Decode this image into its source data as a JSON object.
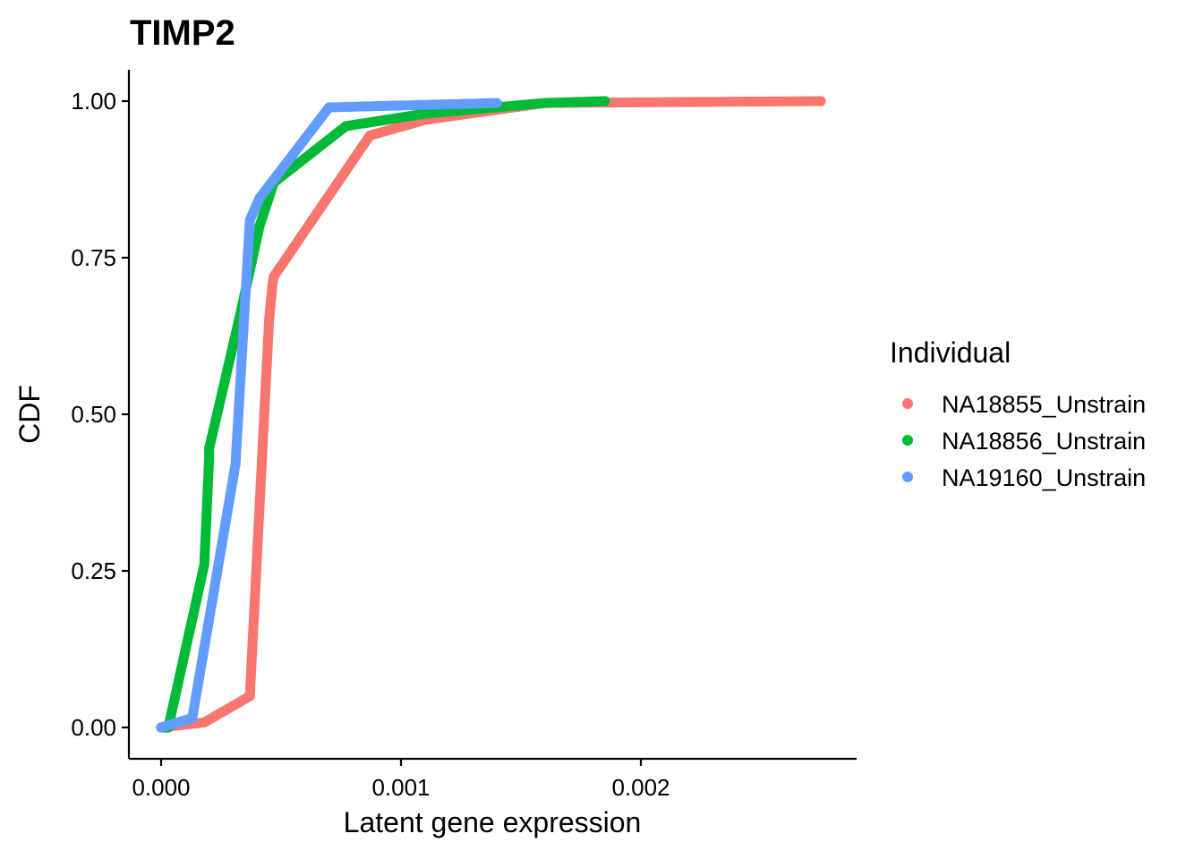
{
  "chart_data": {
    "type": "scatter",
    "title": "TIMP2",
    "xlabel": "Latent gene expression",
    "ylabel": "CDF",
    "xlim": [
      -0.000135,
      0.00291
    ],
    "ylim": [
      -0.047,
      1.05
    ],
    "x_ticks": [
      0.0,
      0.001,
      0.002
    ],
    "x_tick_labels": [
      "0.000",
      "0.001",
      "0.002"
    ],
    "y_ticks": [
      0.0,
      0.25,
      0.5,
      0.75,
      1.0
    ],
    "y_tick_labels": [
      "0.00",
      "0.25",
      "0.50",
      "0.75",
      "1.00"
    ],
    "grid": false,
    "legend": {
      "title": "Individual",
      "position": "right"
    },
    "series": [
      {
        "name": "NA18855_Unstrain",
        "color": "#F8766D",
        "points": [
          [
            0.0,
            0.0
          ],
          [
            0.00018,
            0.008
          ],
          [
            0.00037,
            0.05
          ],
          [
            0.000375,
            0.09
          ],
          [
            0.00039,
            0.2
          ],
          [
            0.00041,
            0.35
          ],
          [
            0.00043,
            0.5
          ],
          [
            0.00045,
            0.65
          ],
          [
            0.000465,
            0.71
          ],
          [
            0.00047,
            0.72
          ],
          [
            0.00087,
            0.945
          ],
          [
            0.0011,
            0.97
          ],
          [
            0.0016,
            0.997
          ],
          [
            0.00275,
            1.0
          ]
        ]
      },
      {
        "name": "NA18856_Unstrain",
        "color": "#00BA38",
        "points": [
          [
            0.0,
            0.0
          ],
          [
            3e-05,
            0.0
          ],
          [
            0.00018,
            0.26
          ],
          [
            0.0002,
            0.43
          ],
          [
            0.0002,
            0.445
          ],
          [
            0.00033,
            0.66
          ],
          [
            0.00041,
            0.8
          ],
          [
            0.00047,
            0.87
          ],
          [
            0.00077,
            0.96
          ],
          [
            0.0011,
            0.98
          ],
          [
            0.0016,
            0.997
          ],
          [
            0.00185,
            1.0
          ]
        ]
      },
      {
        "name": "NA19160_Unstrain",
        "color": "#619CFF",
        "points": [
          [
            0.0,
            0.0
          ],
          [
            0.00013,
            0.015
          ],
          [
            0.00031,
            0.42
          ],
          [
            0.00037,
            0.81
          ],
          [
            0.00041,
            0.845
          ],
          [
            0.0007,
            0.99
          ],
          [
            0.001,
            0.993
          ],
          [
            0.0014,
            0.997
          ]
        ]
      }
    ]
  }
}
